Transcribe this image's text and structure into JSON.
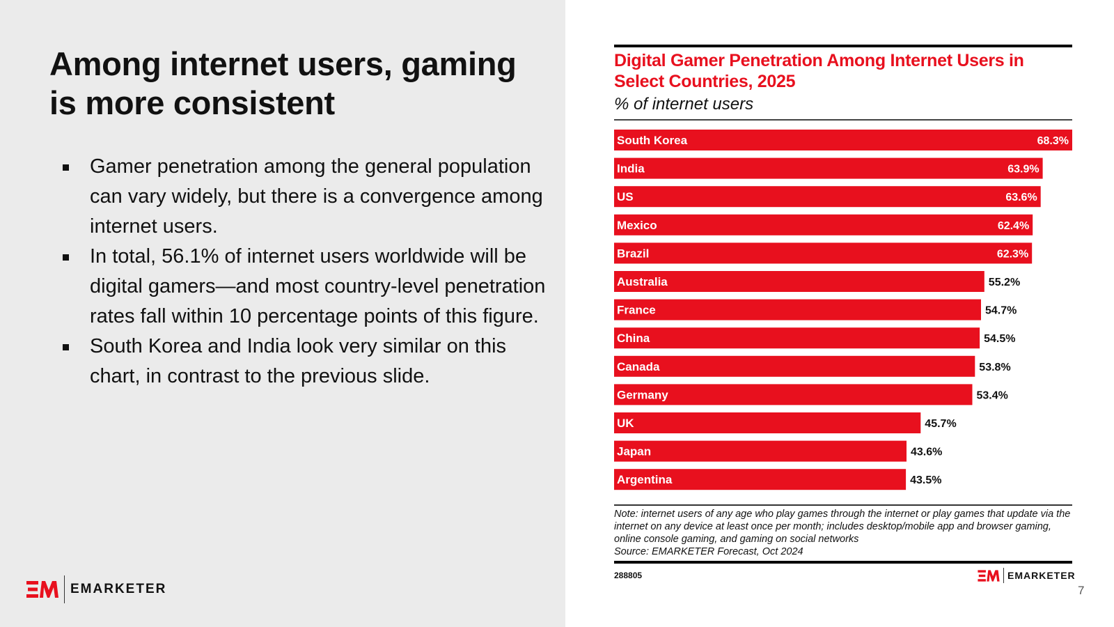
{
  "slide": {
    "title": "Among internet users, gaming is more consistent",
    "bullets": [
      "Gamer penetration among the general population can vary widely, but there is a convergence among internet users.",
      "In total, 56.1% of internet users worldwide will be digital gamers—and most country-level penetration rates fall within 10 percentage points of this figure.",
      "South Korea and India look very similar on this chart, in contrast to the previous slide."
    ],
    "page_number": "7",
    "brand": "EMARKETER",
    "logo_mark": "EM"
  },
  "colors": {
    "accent": "#e8101e",
    "text": "#111111",
    "left_bg": "#ebebeb"
  },
  "chart_data": {
    "type": "bar",
    "orientation": "horizontal",
    "title": "Digital Gamer Penetration Among Internet Users in Select Countries, 2025",
    "subtitle": "% of internet users",
    "categories": [
      "South Korea",
      "India",
      "US",
      "Mexico",
      "Brazil",
      "Australia",
      "France",
      "China",
      "Canada",
      "Germany",
      "UK",
      "Japan",
      "Argentina"
    ],
    "values": [
      68.3,
      63.9,
      63.6,
      62.4,
      62.3,
      55.2,
      54.7,
      54.5,
      53.8,
      53.4,
      45.7,
      43.6,
      43.5
    ],
    "value_labels": [
      "68.3%",
      "63.9%",
      "63.6%",
      "62.4%",
      "62.3%",
      "55.2%",
      "54.7%",
      "54.5%",
      "53.8%",
      "53.4%",
      "45.7%",
      "43.6%",
      "43.5%"
    ],
    "xlim": [
      0,
      68.3
    ],
    "grid": false,
    "note": "Note: internet users of any age who play games through the internet or play games that update via the internet on any device at least once per month; includes desktop/mobile app and browser gaming, online console gaming, and gaming on social networks",
    "source": "Source: EMARKETER Forecast, Oct 2024",
    "chart_id": "288805"
  }
}
